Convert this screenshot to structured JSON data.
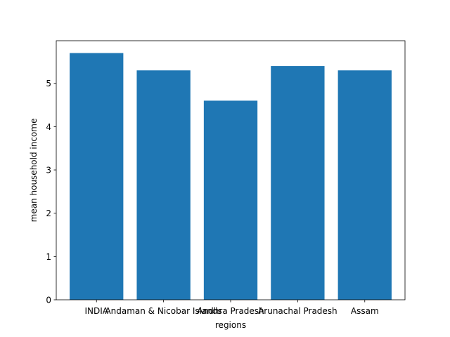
{
  "chart_data": {
    "type": "bar",
    "title": "",
    "xlabel": "regions",
    "ylabel": "mean household income",
    "categories": [
      "INDIA",
      "Andaman & Nicobar Islands",
      "Andhra Pradesh",
      "Arunachal Pradesh",
      "Assam"
    ],
    "values": [
      5.7,
      5.3,
      4.6,
      5.4,
      5.3
    ],
    "ylim": [
      0,
      5.985
    ],
    "yticks": [
      0,
      1,
      2,
      3,
      4,
      5
    ],
    "grid": false,
    "legend": "none",
    "bar_color": "#1f77b4"
  }
}
